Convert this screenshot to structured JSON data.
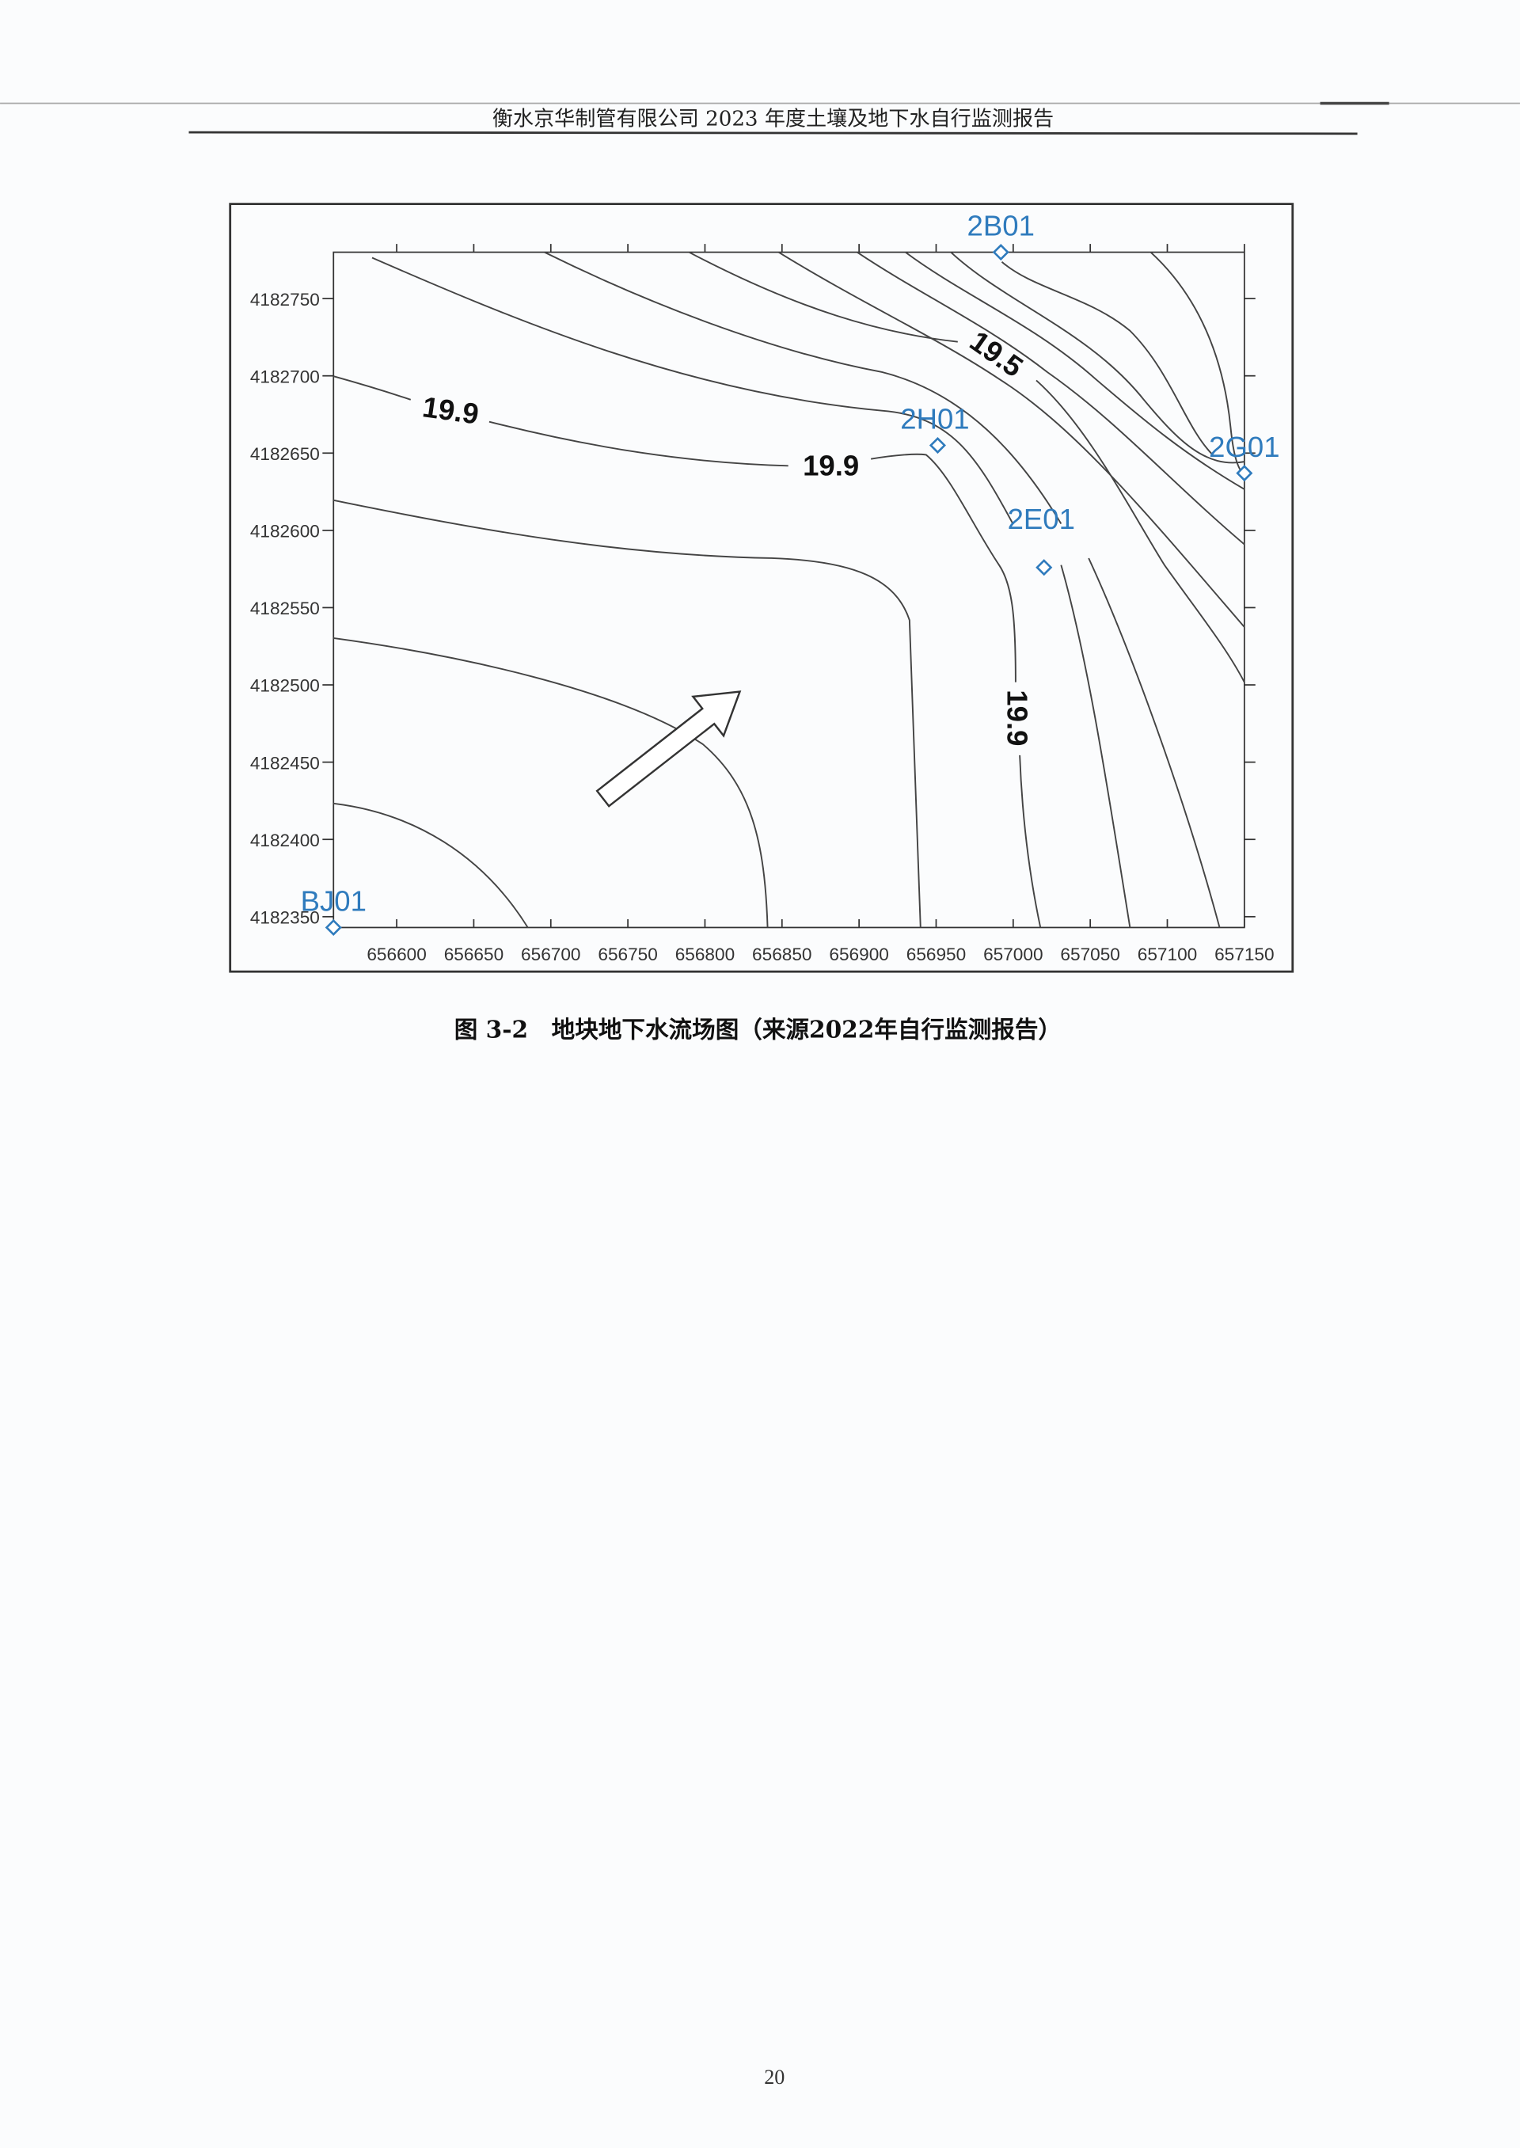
{
  "header": {
    "title": "衡水京华制管有限公司 2023 年度土壤及地下水自行监测报告"
  },
  "figure": {
    "caption": "图 3-2　地块地下水流场图（来源2022年自行监测报告）",
    "arrow_icon": "flow-direction-arrow-icon"
  },
  "chart_data": {
    "type": "contour",
    "title": "",
    "xlabel": "",
    "ylabel": "",
    "x_ticks": [
      "656600",
      "656650",
      "656700",
      "656750",
      "656800",
      "656850",
      "656900",
      "656950",
      "657000",
      "657050",
      "657100",
      "657150"
    ],
    "y_ticks": [
      "4182750",
      "4182700",
      "4182650",
      "4182600",
      "4182550",
      "4182500",
      "4182450",
      "4182400",
      "4182350"
    ],
    "xlim": [
      656559,
      657150
    ],
    "ylim": [
      4182343,
      4182780
    ],
    "contour_labels": [
      "19.9",
      "19.9",
      "19.5",
      "19.9"
    ],
    "wells": [
      {
        "name": "2B01",
        "x": 656992,
        "y": 4182780
      },
      {
        "name": "2H01",
        "x": 656951,
        "y": 4182655
      },
      {
        "name": "2G01",
        "x": 657150,
        "y": 4182637
      },
      {
        "name": "2E01",
        "x": 657020,
        "y": 4182576
      },
      {
        "name": "BJ01",
        "x": 656559,
        "y": 4182343
      }
    ],
    "well_color": "#2f7bbd",
    "flow_direction": "northeast"
  },
  "footer": {
    "page_number": "20"
  }
}
